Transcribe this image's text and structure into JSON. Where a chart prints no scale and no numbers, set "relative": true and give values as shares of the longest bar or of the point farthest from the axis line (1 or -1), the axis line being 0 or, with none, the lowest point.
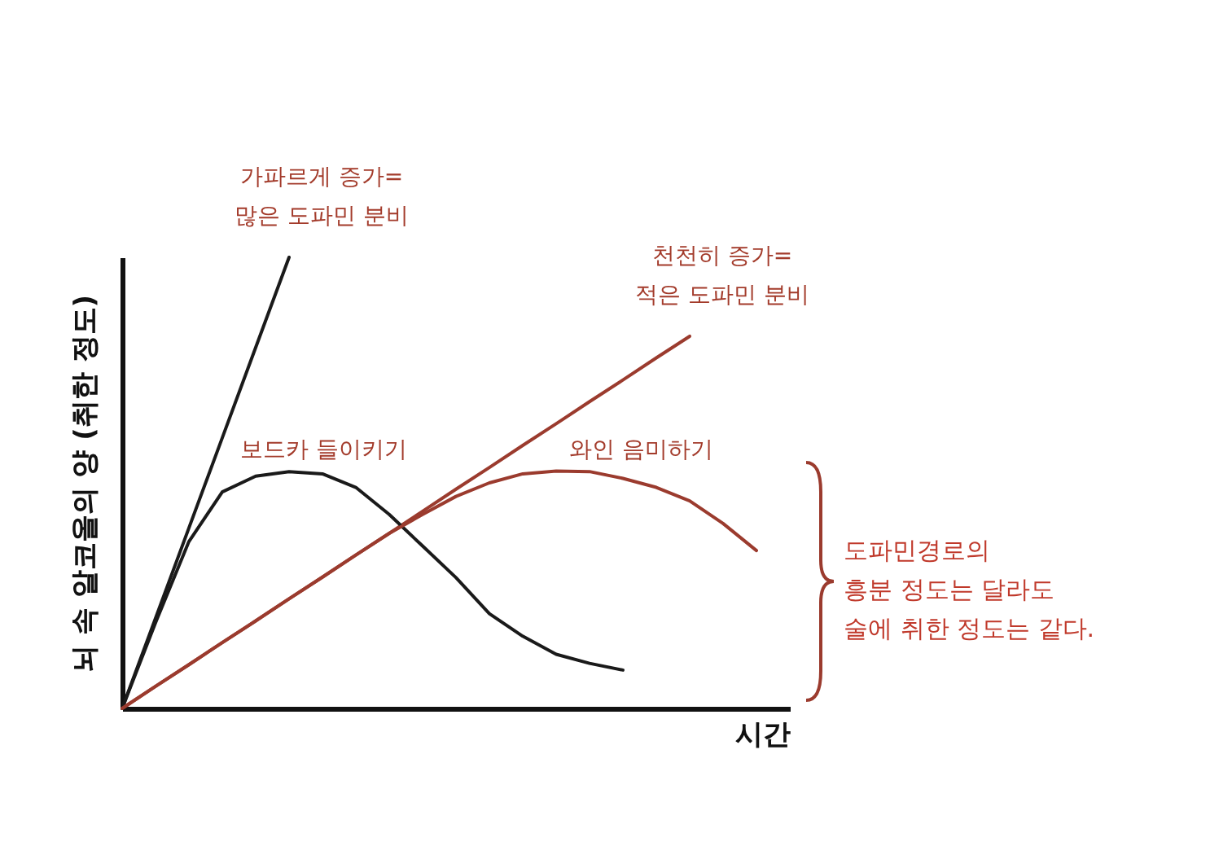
{
  "chart_data": {
    "type": "line",
    "relative": true,
    "xlabel": "시간",
    "ylabel": "뇌 속 알코올의 양 (취한 정도)",
    "categories": [
      null,
      null,
      null,
      null,
      null,
      null,
      null,
      null,
      null,
      null,
      null,
      null,
      null,
      null,
      null,
      null,
      null,
      null,
      null,
      null,
      null
    ],
    "series": [
      {
        "name": "가파르게 증가=\n많은 도파민 분비",
        "color": "#1a1a1a",
        "values": [
          0,
          0.2,
          0.4,
          0.6,
          0.8,
          1,
          null,
          null,
          null,
          null,
          null,
          null,
          null,
          null,
          null,
          null,
          null,
          null,
          null,
          null,
          null
        ]
      },
      {
        "name": "천천히 증가=\n적은 도파민 분비",
        "color": "#9b3b2e",
        "values": [
          0,
          0.049,
          0.097,
          0.146,
          0.194,
          0.243,
          0.291,
          0.34,
          0.388,
          0.437,
          0.486,
          0.534,
          0.583,
          0.631,
          0.68,
          0.728,
          0.777,
          0.825,
          null,
          null,
          null
        ]
      },
      {
        "name": "보드카 들이키기",
        "color": "#1a1a1a",
        "values": [
          0,
          0.19,
          0.37,
          0.48,
          0.515,
          0.525,
          0.52,
          0.49,
          0.43,
          0.36,
          0.29,
          0.21,
          0.16,
          0.12,
          0.1,
          0.085,
          null,
          null,
          null,
          null,
          null
        ]
      },
      {
        "name": "와인 음미하기",
        "color": "#9b3b2e",
        "values": [
          0,
          0.049,
          0.097,
          0.146,
          0.194,
          0.243,
          0.291,
          0.34,
          0.388,
          0.43,
          0.47,
          0.5,
          0.52,
          0.526,
          0.525,
          0.51,
          0.49,
          0.46,
          0.41,
          0.35,
          null
        ]
      }
    ],
    "annotations": [
      "도파민경로의\n흥분 정도는 달라도\n술에 취한 정도는 같다."
    ]
  }
}
